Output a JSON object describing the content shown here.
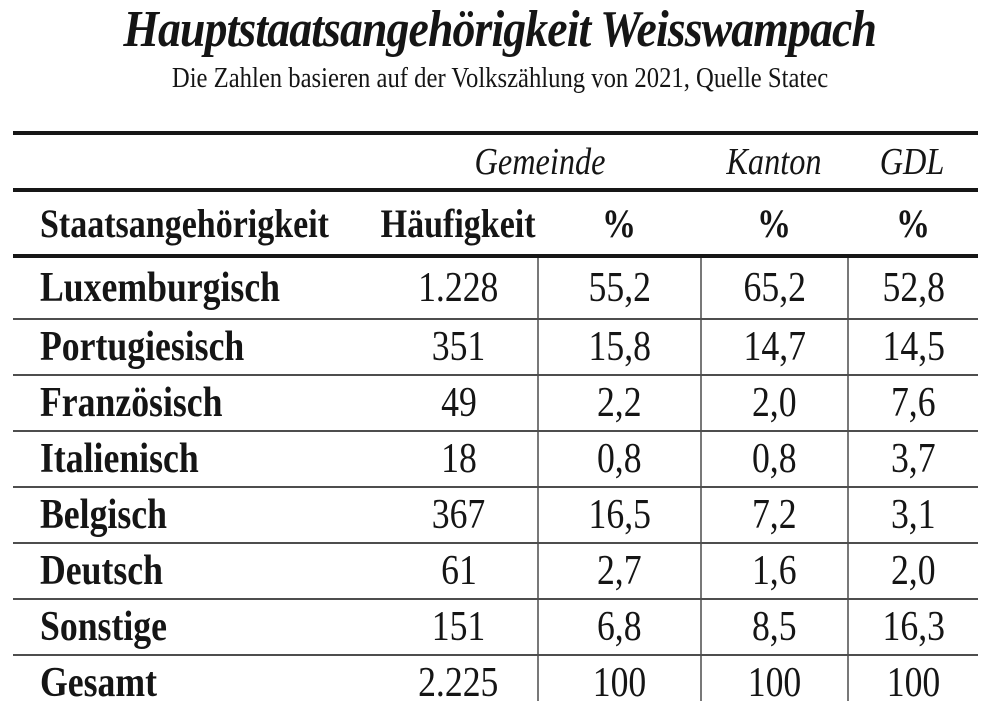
{
  "page": {
    "title": "Hauptstaatsangehörigkeit Weisswampach",
    "subtitle": "Die Zahlen basieren auf der Volkszählung von 2021, Quelle Statec"
  },
  "table": {
    "group_headers": {
      "gemeinde": "Gemeinde",
      "kanton": "Kanton",
      "gdl": "GDL"
    },
    "column_headers": {
      "nationality": "Staatsangehörigkeit",
      "frequency": "Häufigkeit",
      "pct_gemeinde": "%",
      "pct_kanton": "%",
      "pct_gdl": "%"
    },
    "rows": [
      {
        "cells": [
          "Luxemburgisch",
          "1.228",
          "55,2",
          "65,2",
          "52,8"
        ]
      },
      {
        "cells": [
          "Portugiesisch",
          "351",
          "15,8",
          "14,7",
          "14,5"
        ]
      },
      {
        "cells": [
          "Französisch",
          "49",
          "2,2",
          "2,0",
          "7,6"
        ]
      },
      {
        "cells": [
          "Italienisch",
          "18",
          "0,8",
          "0,8",
          "3,7"
        ]
      },
      {
        "cells": [
          "Belgisch",
          "367",
          "16,5",
          "7,2",
          "3,1"
        ]
      },
      {
        "cells": [
          "Deutsch",
          "61",
          "2,7",
          "1,6",
          "2,0"
        ]
      },
      {
        "cells": [
          "Sonstige",
          "151",
          "6,8",
          "8,5",
          "16,3"
        ]
      },
      {
        "cells": [
          "Gesamt",
          "2.225",
          "100",
          "100",
          "100"
        ]
      }
    ]
  },
  "colors": {
    "background": "#ffffff",
    "text": "#151515",
    "rule_thick": "#161616",
    "rule_thin": "#4e4e4e",
    "divider_vertical": "#787878"
  },
  "chart_data": {
    "type": "table",
    "title": "Hauptstaatsangehörigkeit Weisswampach",
    "subtitle": "Die Zahlen basieren auf der Volkszählung von 2021, Quelle Statec",
    "column_groups": [
      "",
      "",
      "Gemeinde",
      "Kanton",
      "GDL"
    ],
    "columns": [
      "Staatsangehörigkeit",
      "Häufigkeit",
      "% (Gemeinde)",
      "% (Kanton)",
      "% (GDL)"
    ],
    "rows": [
      [
        "Luxemburgisch",
        1228,
        55.2,
        65.2,
        52.8
      ],
      [
        "Portugiesisch",
        351,
        15.8,
        14.7,
        14.5
      ],
      [
        "Französisch",
        49,
        2.2,
        2.0,
        7.6
      ],
      [
        "Italienisch",
        18,
        0.8,
        0.8,
        3.7
      ],
      [
        "Belgisch",
        367,
        16.5,
        7.2,
        3.1
      ],
      [
        "Deutsch",
        61,
        2.7,
        1.6,
        2.0
      ],
      [
        "Sonstige",
        151,
        6.8,
        8.5,
        16.3
      ],
      [
        "Gesamt",
        2225,
        100,
        100,
        100
      ]
    ]
  }
}
